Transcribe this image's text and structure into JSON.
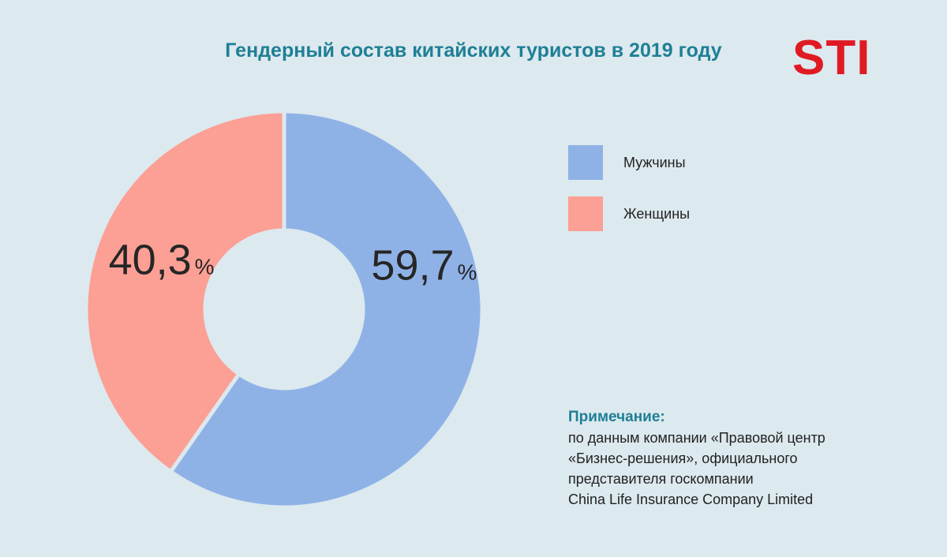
{
  "header": {
    "title": "Гендерный состав китайских туристов в 2019 году",
    "logo_text": "STI"
  },
  "chart_data": {
    "type": "pie",
    "variant": "donut",
    "title": "Гендерный состав китайских туристов в 2019 году",
    "slices": [
      {
        "name": "Мужчины",
        "value": 59.7,
        "label_number": "59,7",
        "label_unit": "%",
        "color": "#8fb2e6"
      },
      {
        "name": "Женщины",
        "value": 40.3,
        "label_number": "40,3",
        "label_unit": "%",
        "color": "#fc9f94"
      }
    ],
    "legend_position": "right"
  },
  "note": {
    "title": "Примечание:",
    "lines": [
      "по данным компании «Правовой центр",
      "«Бизнес-решения», официального",
      "представителя госкомпании",
      "China Life Insurance Company Limited"
    ]
  },
  "colors": {
    "background": "#dce9ee",
    "title": "#1e7f96",
    "logo": "#e01a22"
  }
}
